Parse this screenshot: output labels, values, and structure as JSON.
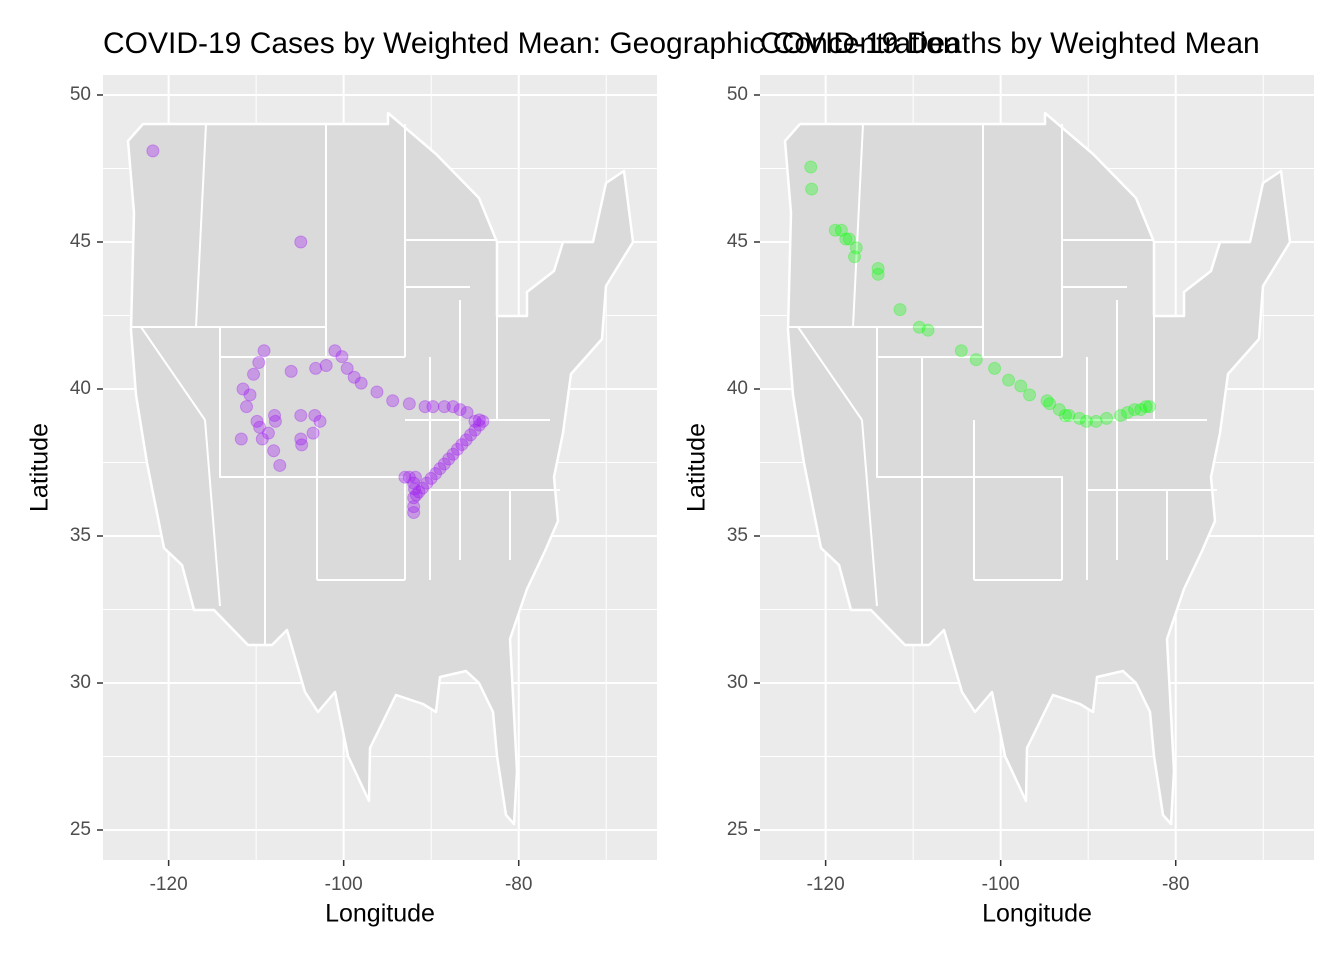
{
  "chart_data": [
    {
      "type": "scatter",
      "title": "COVID-19 Cases by Weighted Mean: Geographic Concentration",
      "x_label": "Longitude",
      "y_label": "Latitude",
      "color": "#a020f0",
      "alpha": 0.35,
      "grid": true,
      "xlim": [
        -127.5,
        -64.2
      ],
      "ylim": [
        23.98,
        50.68
      ],
      "xticks": [
        -120,
        -100,
        -80
      ],
      "yticks": [
        25,
        30,
        35,
        40,
        45,
        50
      ],
      "xticks_minor": [
        -110,
        -90,
        -70
      ],
      "yticks_minor": [
        27.5,
        32.5,
        37.5,
        42.5,
        47.5
      ],
      "x": [
        -121.8,
        -104.9,
        -109.1,
        -101.0,
        -100.2,
        -102.0,
        -103.2,
        -106.0,
        -99.6,
        -98.8,
        -98.0,
        -96.2,
        -94.4,
        -92.5,
        -90.7,
        -89.8,
        -88.5,
        -87.5,
        -86.7,
        -85.9,
        -111.5,
        -110.3,
        -109.7,
        -110.7,
        -111.1,
        -109.9,
        -111.7,
        -109.6,
        -108.6,
        -109.3,
        -107.9,
        -107.8,
        -108.0,
        -107.3,
        -104.9,
        -103.3,
        -102.7,
        -103.5,
        -104.9,
        -104.8,
        -84.1,
        -84.5,
        -85.0,
        -85.5,
        -86.0,
        -86.5,
        -87.0,
        -87.5,
        -88.0,
        -88.5,
        -89.0,
        -89.5,
        -90.0,
        -90.5,
        -91.0,
        -91.4,
        -91.7,
        -92.0,
        -92.0,
        -92.0,
        -91.8,
        -92.5,
        -93.0,
        -92.0,
        -91.9,
        -84.5,
        -85.0
      ],
      "values": [
        48.1,
        45.0,
        41.3,
        41.3,
        41.1,
        40.8,
        40.7,
        40.6,
        40.7,
        40.4,
        40.2,
        39.9,
        39.6,
        39.5,
        39.4,
        39.4,
        39.4,
        39.4,
        39.3,
        39.2,
        40.0,
        40.5,
        40.9,
        39.8,
        39.4,
        38.9,
        38.3,
        38.7,
        38.5,
        38.3,
        39.1,
        38.9,
        37.9,
        37.4,
        39.1,
        39.1,
        38.9,
        38.5,
        38.3,
        38.1,
        38.9,
        38.77,
        38.6,
        38.44,
        38.27,
        38.11,
        37.95,
        37.78,
        37.62,
        37.45,
        37.29,
        37.12,
        36.96,
        36.8,
        36.63,
        36.5,
        36.4,
        36.0,
        35.8,
        36.3,
        37.0,
        37.0,
        37.0,
        36.8,
        36.6,
        38.95,
        38.9
      ]
    },
    {
      "type": "scatter",
      "title": "COVID-19 Deaths by Weighted Mean",
      "x_label": "Longitude",
      "y_label": "Latitude",
      "color": "#00ff00",
      "alpha": 0.3,
      "grid": true,
      "xlim": [
        -127.5,
        -64.2
      ],
      "ylim": [
        23.98,
        50.68
      ],
      "xticks": [
        -120,
        -100,
        -80
      ],
      "yticks": [
        25,
        30,
        35,
        40,
        45,
        50
      ],
      "xticks_minor": [
        -110,
        -90,
        -70
      ],
      "yticks_minor": [
        27.5,
        32.5,
        37.5,
        42.5,
        47.5
      ],
      "x": [
        -121.7,
        -121.6,
        -118.9,
        -118.2,
        -117.7,
        -117.3,
        -116.5,
        -116.7,
        -114.0,
        -114.0,
        -111.5,
        -109.3,
        -108.3,
        -104.5,
        -102.8,
        -100.7,
        -99.1,
        -97.7,
        -96.7,
        -94.7,
        -94.4,
        -93.3,
        -92.6,
        -92.2,
        -91.0,
        -90.2,
        -89.1,
        -87.9,
        -86.3,
        -85.5,
        -84.7,
        -84.0,
        -83.4,
        -83.0
      ],
      "values": [
        47.55,
        46.8,
        45.4,
        45.4,
        45.1,
        45.1,
        44.8,
        44.5,
        44.1,
        43.9,
        42.7,
        42.1,
        42.0,
        41.3,
        41.0,
        40.7,
        40.3,
        40.1,
        39.8,
        39.6,
        39.5,
        39.3,
        39.1,
        39.1,
        39.0,
        38.9,
        38.9,
        39.0,
        39.1,
        39.2,
        39.3,
        39.3,
        39.4,
        39.4
      ]
    }
  ]
}
